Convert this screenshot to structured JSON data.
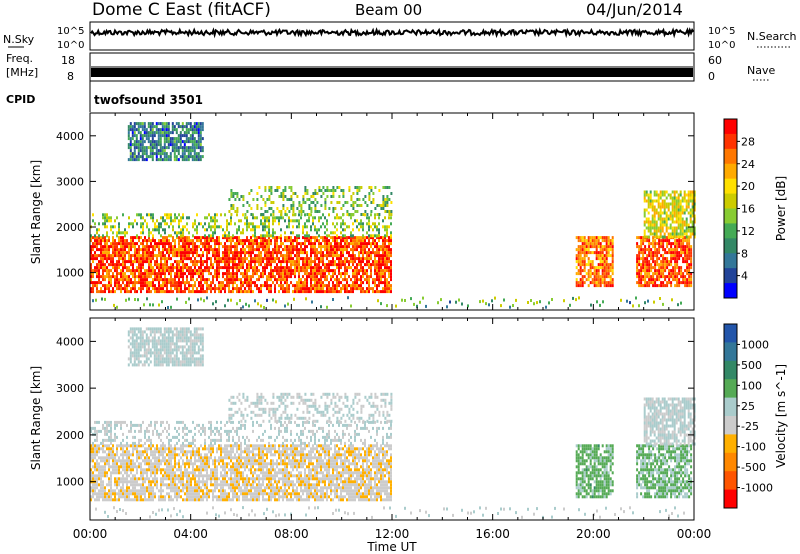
{
  "header": {
    "title": "Dome C East (fitACF)",
    "beam": "Beam 00",
    "date": "04/Jun/2014"
  },
  "strips": {
    "nsky_label": "N.Sky",
    "nsky_ticks_left": [
      "10^5",
      "10^0"
    ],
    "nsearch_label": "N.Search",
    "nsearch_ticks_right": [
      "10^5",
      "10^0"
    ],
    "freq_label_line1": "Freq.",
    "freq_label_line2": "[MHz]",
    "freq_ticks": [
      "18",
      "8"
    ],
    "nave_label": "Nave",
    "nave_ticks": [
      "60",
      "0"
    ],
    "cpid_label": "CPID",
    "cpid_text": "twofsound 3501"
  },
  "chart_data": {
    "type": "heatmap",
    "xlabel": "Time UT",
    "x_ticks": [
      "00:00",
      "04:00",
      "08:00",
      "12:00",
      "16:00",
      "20:00",
      "00:00"
    ],
    "x_range_hours": [
      0,
      24
    ],
    "ylabel": "Slant Range [km]",
    "y_ticks": [
      "1000",
      "2000",
      "3000",
      "4000"
    ],
    "y_range_km": [
      180,
      4500
    ],
    "panels": [
      {
        "name": "power",
        "colorbar_label": "Power [dB]",
        "colorbar_ticks": [
          "28",
          "24",
          "20",
          "16",
          "12",
          "8",
          "4"
        ],
        "colorbar_colors": [
          "#ff0000",
          "#ff3300",
          "#ff7700",
          "#ffaa00",
          "#ffe000",
          "#cccc00",
          "#88cc33",
          "#44aa55",
          "#338866",
          "#337799",
          "#224499",
          "#0000ff"
        ]
      },
      {
        "name": "velocity",
        "colorbar_label": "Velocity [m s^-1]",
        "colorbar_ticks": [
          "1000",
          "500",
          "100",
          "25",
          "-25",
          "-100",
          "-500",
          "-1000"
        ],
        "colorbar_colors": [
          "#2255aa",
          "#337799",
          "#338866",
          "#55aa55",
          "#aacccc",
          "#cccccc",
          "#ffb000",
          "#ff8800",
          "#ff5500",
          "#ff0000"
        ]
      }
    ],
    "regions": [
      {
        "start": 0.0,
        "end": 12.0,
        "range_min": 600,
        "range_max": 1800,
        "power": 26,
        "velocity": -150
      },
      {
        "start": 0.0,
        "end": 12.0,
        "range_min": 1800,
        "range_max": 2300,
        "power": 15,
        "velocity": 20
      },
      {
        "start": 5.5,
        "end": 12.0,
        "range_min": 2300,
        "range_max": 2900,
        "power": 14,
        "velocity": 5
      },
      {
        "start": 1.5,
        "end": 4.5,
        "range_min": 3500,
        "range_max": 4300,
        "power": 9,
        "velocity": 60
      },
      {
        "start": 19.3,
        "end": 20.8,
        "range_min": 700,
        "range_max": 1800,
        "power": 24,
        "velocity": 300
      },
      {
        "start": 21.7,
        "end": 23.9,
        "range_min": 700,
        "range_max": 1800,
        "power": 26,
        "velocity": 250
      },
      {
        "start": 22.0,
        "end": 24.0,
        "range_min": 1800,
        "range_max": 2800,
        "power": 18,
        "velocity": 10
      }
    ]
  }
}
